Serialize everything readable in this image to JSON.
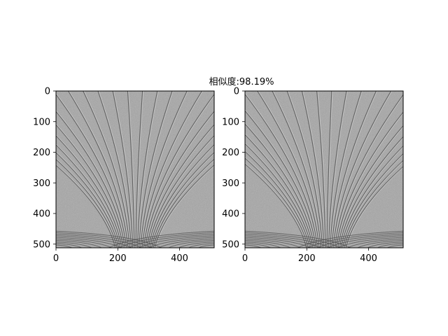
{
  "figure": {
    "title": "相似度:98.19%"
  },
  "chart_data": [
    {
      "type": "image",
      "name": "left-image-panel",
      "image_kind": "grayscale embossed texture with curved fan-like lines",
      "xlim": [
        0,
        512
      ],
      "ylim": [
        512,
        0
      ],
      "xticks": [
        0,
        200,
        400
      ],
      "yticks": [
        0,
        100,
        200,
        300,
        400,
        500
      ],
      "xtick_labels": [
        "0",
        "200",
        "400"
      ],
      "ytick_labels": [
        "0",
        "100",
        "200",
        "300",
        "400",
        "500"
      ],
      "grid": false
    },
    {
      "type": "image",
      "name": "right-image-panel",
      "image_kind": "grayscale embossed texture with curved fan-like lines",
      "xlim": [
        0,
        512
      ],
      "ylim": [
        512,
        0
      ],
      "xticks": [
        0,
        200,
        400
      ],
      "yticks": [
        0,
        100,
        200,
        300,
        400,
        500
      ],
      "xtick_labels": [
        "0",
        "200",
        "400"
      ],
      "ytick_labels": [
        "0",
        "100",
        "200",
        "300",
        "400",
        "500"
      ],
      "grid": false
    }
  ],
  "colors": {
    "texture_base": "#a6a6a6",
    "line_dark": "#4a4a4a",
    "line_light": "#d8d8d8",
    "axis": "#000000"
  }
}
